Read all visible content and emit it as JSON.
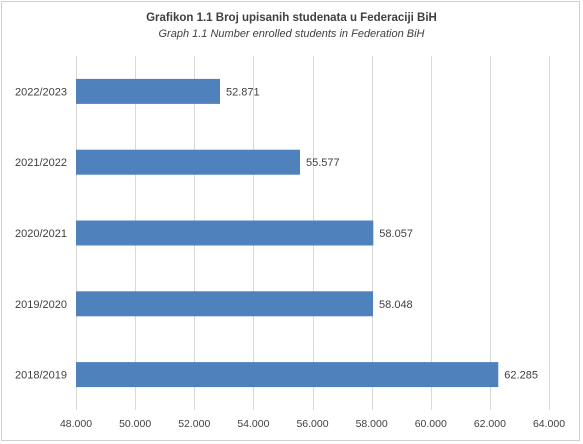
{
  "chart_data": {
    "type": "bar",
    "orientation": "horizontal",
    "title": "Grafikon 1.1 Broj upisanih studenata u Federaciji BiH",
    "subtitle": "Graph 1.1 Number enrolled students in Federation BiH",
    "categories": [
      "2022/2023",
      "2021/2022",
      "2020/2021",
      "2019/2020",
      "2018/2019"
    ],
    "values": [
      52871,
      55577,
      58057,
      58048,
      62285
    ],
    "value_labels": [
      "52.871",
      "55.577",
      "58.057",
      "58.048",
      "62.285"
    ],
    "xlim": [
      48000,
      64000
    ],
    "x_ticks": [
      48000,
      50000,
      52000,
      54000,
      56000,
      58000,
      60000,
      62000,
      64000
    ],
    "x_tick_labels": [
      "48.000",
      "50.000",
      "52.000",
      "54.000",
      "56.000",
      "58.000",
      "60.000",
      "62.000",
      "64.000"
    ],
    "grid": true,
    "legend": "none",
    "bar_color": "#4f81bd",
    "grid_color": "#d9d9d9",
    "text_color": "#404040"
  }
}
